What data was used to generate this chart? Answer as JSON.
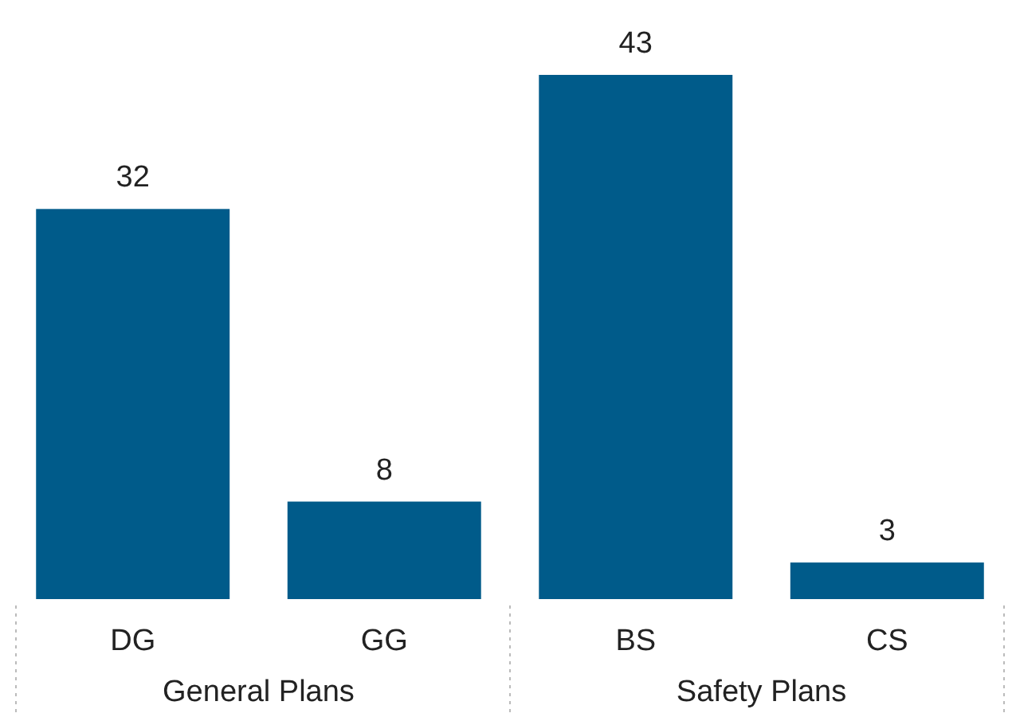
{
  "chart_data": {
    "type": "bar",
    "categories": [
      "DG",
      "GG",
      "BS",
      "CS"
    ],
    "values": [
      32,
      8,
      43,
      3
    ],
    "color": "#005b8a",
    "data_labels": true,
    "annotations": [
      "General Plans",
      "Safety Plans"
    ]
  }
}
